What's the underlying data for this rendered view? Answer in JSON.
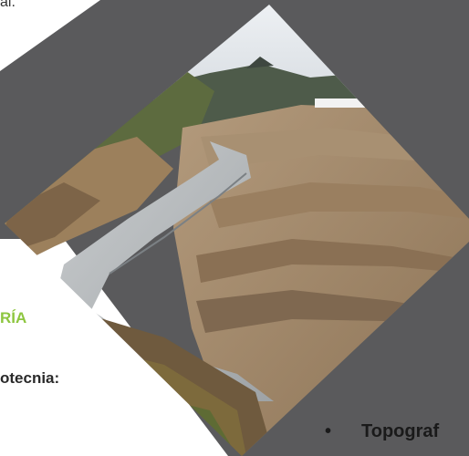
{
  "top_text": "al.",
  "section_title": "RÍA",
  "geo_label": "otecnia:",
  "bottom_item": {
    "bullet": "•",
    "label": "Topograf"
  },
  "colors": {
    "background": "#5a5a5c",
    "accent_green": "#8dc63f"
  },
  "image": {
    "subject": "mine-tailings-canal-photo"
  }
}
